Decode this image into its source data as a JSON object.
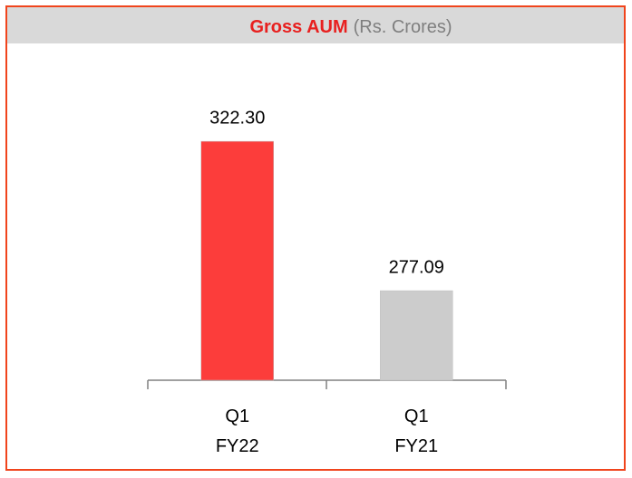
{
  "chart_data": {
    "type": "bar",
    "title": "Gross AUM",
    "subtitle": "(Rs. Crores)",
    "categories": [
      "Q1 FY22",
      "Q1 FY21"
    ],
    "values": [
      322.3,
      277.09
    ],
    "value_labels": [
      "322.30",
      "277.09"
    ],
    "colors": [
      "#fc3d3b",
      "#cccccc"
    ],
    "ylim": [
      250,
      350
    ]
  }
}
